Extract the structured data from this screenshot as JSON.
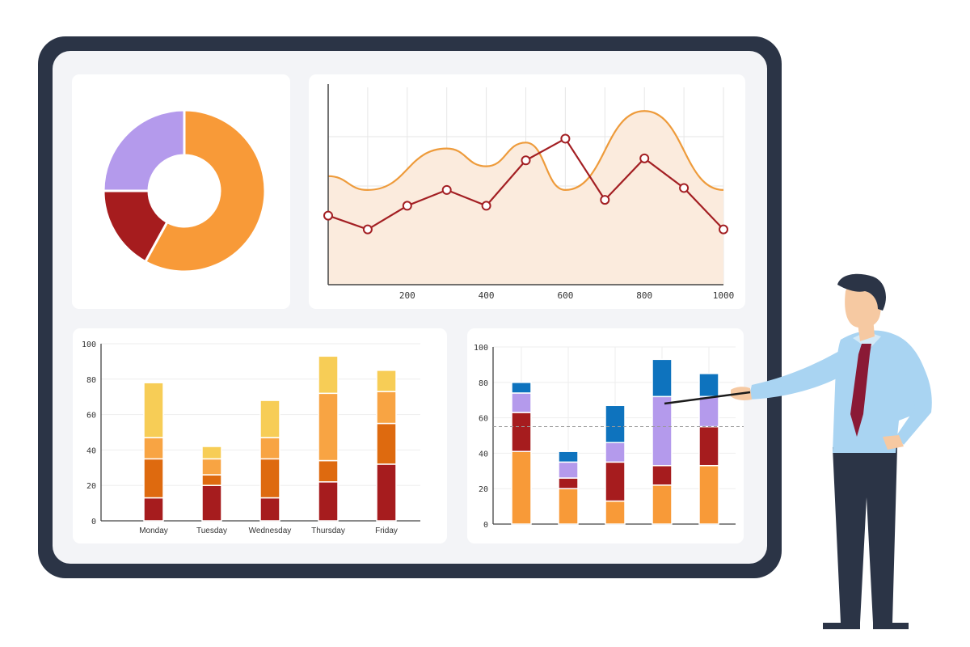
{
  "colors": {
    "frame": "#2B3446",
    "screen": "#F3F4F7",
    "card": "#FFFFFF",
    "orange": "#F89A38",
    "dark_red": "#A61C1E",
    "purple": "#B49AEC",
    "yellow": "#F7CD56",
    "light_orange": "#F8A443",
    "burnt_orange": "#DE6A0F",
    "blue": "#0E73BE",
    "line_orange": "#EE9B3B",
    "line_red": "#A31F23",
    "area_fill": "#FBEBDD",
    "grid": "#E6E6E6"
  },
  "illustration": {
    "presenter": "man-in-blue-shirt-with-red-tie-pointing",
    "pointer": "pointer-stick"
  },
  "chart_data": [
    {
      "type": "pie",
      "variant": "donut",
      "slices": [
        {
          "value": 58,
          "color": "#F89A38"
        },
        {
          "value": 17,
          "color": "#A61C1E"
        },
        {
          "value": 25,
          "color": "#B49AEC"
        }
      ]
    },
    {
      "type": "line",
      "x_ticks": [
        "200",
        "400",
        "600",
        "800",
        "1000"
      ],
      "xlim": [
        0,
        1000
      ],
      "ylim": [
        0,
        100
      ],
      "grid": true,
      "series": [
        {
          "style": "smooth-area",
          "x": [
            0,
            100,
            300,
            400,
            500,
            600,
            800,
            1000
          ],
          "values": [
            55,
            48,
            69,
            60,
            72,
            48,
            88,
            48
          ]
        },
        {
          "style": "markers",
          "x": [
            0,
            100,
            200,
            300,
            400,
            500,
            600,
            700,
            800,
            900,
            1000
          ],
          "values": [
            35,
            28,
            40,
            48,
            40,
            63,
            74,
            43,
            64,
            49,
            28
          ]
        }
      ]
    },
    {
      "type": "bar",
      "variant": "stacked",
      "categories": [
        "Monday",
        "Tuesday",
        "Wednesday",
        "Thursday",
        "Friday"
      ],
      "y_ticks": [
        "0",
        "20",
        "40",
        "60",
        "80",
        "100"
      ],
      "ylim": [
        0,
        100
      ],
      "series": [
        {
          "color": "#A61C1E",
          "values": [
            13,
            20,
            13,
            22,
            32
          ]
        },
        {
          "color": "#DE6A0F",
          "values": [
            22,
            6,
            22,
            12,
            23
          ]
        },
        {
          "color": "#F8A443",
          "values": [
            12,
            9,
            12,
            38,
            18
          ]
        },
        {
          "color": "#F7CD56",
          "values": [
            31,
            7,
            21,
            21,
            12
          ]
        }
      ]
    },
    {
      "type": "bar",
      "variant": "stacked",
      "categories": [
        "",
        "",
        "",
        "",
        ""
      ],
      "y_ticks": [
        "0",
        "20",
        "40",
        "60",
        "80",
        "100"
      ],
      "ylim": [
        0,
        100
      ],
      "reference_line": 55,
      "series": [
        {
          "color": "#F89A38",
          "values": [
            41,
            20,
            13,
            22,
            33
          ]
        },
        {
          "color": "#A61C1E",
          "values": [
            22,
            6,
            22,
            11,
            22
          ]
        },
        {
          "color": "#B49AEC",
          "values": [
            11,
            9,
            11,
            39,
            17
          ]
        },
        {
          "color": "#0E73BE",
          "values": [
            6,
            6,
            21,
            21,
            13
          ]
        }
      ]
    }
  ]
}
